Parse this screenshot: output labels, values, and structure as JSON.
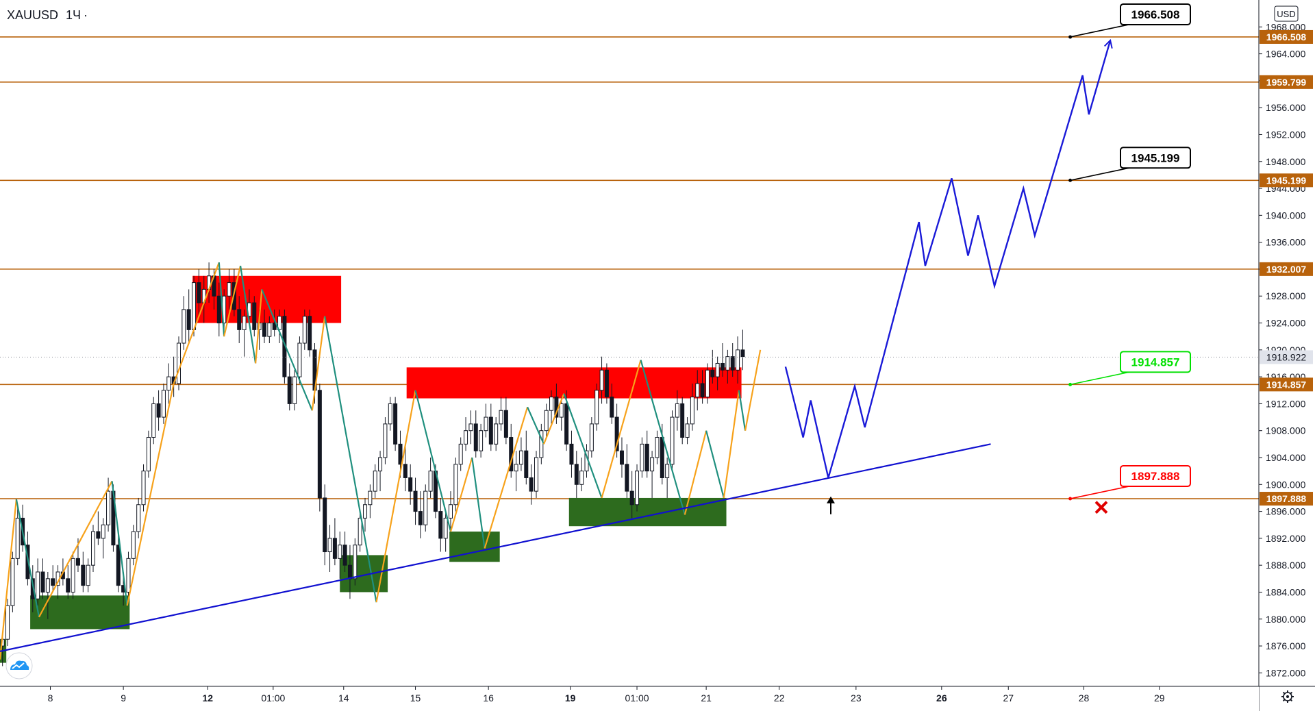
{
  "symbol": "XAUUSD",
  "interval": "1Ч",
  "currency": "USD",
  "colors": {
    "level": "#b8620b",
    "bull": "#131722",
    "bear": "#131722",
    "trend": "#1010d0",
    "projection": "#1a1ad8",
    "zigzag_up": "#f7a21b",
    "zigzag_down": "#1f8f7e",
    "supply": "#ff0000",
    "demand": "#2d6b1e",
    "last_price": "#e0e3eb",
    "callout_red": "#ff0000",
    "callout_green": "#00e000",
    "callout_black": "#000000"
  },
  "icons": {
    "settings": "gear-icon",
    "logo": "tradingview-cloud-icon",
    "target": "cross-icon",
    "entry": "up-arrow-icon"
  },
  "chart_data": {
    "type": "candlestick",
    "ylim": [
      1870,
      1972
    ],
    "y_ticks": [
      1872,
      1876,
      1880,
      1884,
      1888,
      1892,
      1896,
      1900,
      1904,
      1908,
      1912,
      1916,
      1920,
      1924,
      1928,
      1932,
      1936,
      1940,
      1944,
      1948,
      1952,
      1956,
      1960,
      1964,
      1968
    ],
    "y_tick_labels": [
      "1872.000",
      "1876.000",
      "1880.000",
      "1884.000",
      "1888.000",
      "1892.000",
      "1896.000",
      "1900.000",
      "1904.000",
      "1908.000",
      "1912.000",
      "1916.000",
      "1920.000",
      "1924.000",
      "1928.000",
      "1932.000",
      "1936.000",
      "1940.000",
      "1944.000",
      "1948.000",
      "1952.000",
      "1956.000",
      "1960.000",
      "1964.000",
      "1968.000"
    ],
    "x_ticks": [
      {
        "label": "8",
        "x": 0.04
      },
      {
        "label": "9",
        "x": 0.098
      },
      {
        "label": "12",
        "x": 0.165
      },
      {
        "label": "01:00",
        "x": 0.217
      },
      {
        "label": "14",
        "x": 0.273
      },
      {
        "label": "15",
        "x": 0.33
      },
      {
        "label": "16",
        "x": 0.388
      },
      {
        "label": "19",
        "x": 0.453
      },
      {
        "label": "01:00",
        "x": 0.506
      },
      {
        "label": "21",
        "x": 0.561
      },
      {
        "label": "22",
        "x": 0.619
      },
      {
        "label": "23",
        "x": 0.68
      },
      {
        "label": "26",
        "x": 0.748
      },
      {
        "label": "27",
        "x": 0.801
      },
      {
        "label": "28",
        "x": 0.861
      },
      {
        "label": "29",
        "x": 0.921
      }
    ],
    "last_price": {
      "value": 1918.922,
      "label": "1918.922"
    },
    "levels": [
      {
        "value": 1966.508,
        "label": "1966.508"
      },
      {
        "value": 1959.799,
        "label": "1959.799"
      },
      {
        "value": 1945.199,
        "label": "1945.199"
      },
      {
        "value": 1932.007,
        "label": "1932.007"
      },
      {
        "value": 1914.857,
        "label": "1914.857"
      },
      {
        "value": 1897.888,
        "label": "1897.888"
      }
    ],
    "callouts": [
      {
        "label": "1966.508",
        "value": 1966.508,
        "x": 0.848,
        "color": "black"
      },
      {
        "label": "1945.199",
        "value": 1945.199,
        "x": 0.848,
        "color": "black"
      },
      {
        "label": "1914.857",
        "value": 1914.857,
        "x": 0.848,
        "color": "green"
      },
      {
        "label": "1897.888",
        "value": 1897.888,
        "x": 0.848,
        "color": "red"
      }
    ],
    "supply_zones": [
      {
        "x0": 0.153,
        "x1": 0.271,
        "y0": 1931.0,
        "y1": 1924.0
      },
      {
        "x0": 0.323,
        "x1": 0.589,
        "y0": 1917.4,
        "y1": 1912.8
      }
    ],
    "demand_zones": [
      {
        "x0": 0.0,
        "x1": 0.005,
        "y0": 1877.0,
        "y1": 1873.5
      },
      {
        "x0": 0.024,
        "x1": 0.103,
        "y0": 1883.5,
        "y1": 1878.5
      },
      {
        "x0": 0.27,
        "x1": 0.308,
        "y0": 1889.5,
        "y1": 1884.0
      },
      {
        "x0": 0.357,
        "x1": 0.397,
        "y0": 1893.0,
        "y1": 1888.5
      },
      {
        "x0": 0.452,
        "x1": 0.577,
        "y0": 1898.0,
        "y1": 1893.8
      }
    ],
    "trendline": {
      "x0": 0.0,
      "y0": 1875.2,
      "x1": 0.787,
      "y1": 1906.0
    },
    "projection_path": [
      [
        0.624,
        1917.5
      ],
      [
        0.638,
        1907.0
      ],
      [
        0.644,
        1912.5
      ],
      [
        0.658,
        1901.0
      ],
      [
        0.679,
        1914.6
      ],
      [
        0.687,
        1908.5
      ],
      [
        0.73,
        1939.0
      ],
      [
        0.735,
        1932.5
      ],
      [
        0.756,
        1945.5
      ],
      [
        0.769,
        1934.0
      ],
      [
        0.777,
        1940.0
      ],
      [
        0.79,
        1929.5
      ],
      [
        0.813,
        1944.0
      ],
      [
        0.822,
        1937.0
      ],
      [
        0.86,
        1960.8
      ],
      [
        0.865,
        1955.0
      ],
      [
        0.882,
        1966.0
      ]
    ],
    "zigzag": [
      [
        0.0,
        1874.0
      ],
      [
        0.013,
        1897.8
      ],
      [
        0.031,
        1880.3
      ],
      [
        0.089,
        1900.5
      ],
      [
        0.101,
        1882.0
      ],
      [
        0.138,
        1915.0
      ],
      [
        0.174,
        1933.0
      ],
      [
        0.178,
        1922.0
      ],
      [
        0.191,
        1932.5
      ],
      [
        0.203,
        1918.0
      ],
      [
        0.208,
        1929.0
      ],
      [
        0.248,
        1911.0
      ],
      [
        0.258,
        1925.0
      ],
      [
        0.299,
        1882.5
      ],
      [
        0.33,
        1914.0
      ],
      [
        0.358,
        1893.0
      ],
      [
        0.375,
        1904.0
      ],
      [
        0.385,
        1890.5
      ],
      [
        0.419,
        1911.5
      ],
      [
        0.432,
        1906.0
      ],
      [
        0.448,
        1913.5
      ],
      [
        0.478,
        1898.0
      ],
      [
        0.509,
        1918.5
      ],
      [
        0.544,
        1895.5
      ],
      [
        0.561,
        1908.0
      ],
      [
        0.575,
        1898.0
      ],
      [
        0.587,
        1914.0
      ],
      [
        0.592,
        1908.0
      ],
      [
        0.604,
        1920.0
      ]
    ],
    "candles": [
      [
        0.002,
        1876,
        1878,
        1873,
        1877
      ],
      [
        0.006,
        1877,
        1883,
        1876,
        1882
      ],
      [
        0.01,
        1882,
        1890,
        1881,
        1889
      ],
      [
        0.014,
        1889,
        1897,
        1888,
        1895
      ],
      [
        0.018,
        1895,
        1897,
        1890,
        1891
      ],
      [
        0.022,
        1891,
        1893,
        1885,
        1886
      ],
      [
        0.026,
        1886,
        1888,
        1881,
        1883
      ],
      [
        0.03,
        1883,
        1889,
        1882,
        1887
      ],
      [
        0.034,
        1887,
        1889,
        1883,
        1884
      ],
      [
        0.038,
        1884,
        1887,
        1880,
        1886
      ],
      [
        0.042,
        1886,
        1888,
        1884,
        1885
      ],
      [
        0.046,
        1885,
        1888,
        1883,
        1887
      ],
      [
        0.05,
        1887,
        1889,
        1885,
        1886
      ],
      [
        0.054,
        1886,
        1888,
        1883,
        1884
      ],
      [
        0.058,
        1884,
        1890,
        1883,
        1889
      ],
      [
        0.062,
        1889,
        1892,
        1887,
        1888
      ],
      [
        0.066,
        1888,
        1890,
        1884,
        1885
      ],
      [
        0.07,
        1885,
        1889,
        1884,
        1888
      ],
      [
        0.074,
        1888,
        1894,
        1887,
        1893
      ],
      [
        0.078,
        1893,
        1896,
        1891,
        1892
      ],
      [
        0.082,
        1892,
        1895,
        1889,
        1894
      ],
      [
        0.086,
        1894,
        1901,
        1893,
        1899
      ],
      [
        0.09,
        1899,
        1900,
        1890,
        1891
      ],
      [
        0.094,
        1891,
        1893,
        1884,
        1885
      ],
      [
        0.098,
        1885,
        1887,
        1882,
        1884
      ],
      [
        0.102,
        1884,
        1890,
        1883,
        1889
      ],
      [
        0.106,
        1889,
        1894,
        1888,
        1893
      ],
      [
        0.11,
        1893,
        1898,
        1892,
        1897
      ],
      [
        0.114,
        1897,
        1903,
        1896,
        1902
      ],
      [
        0.118,
        1902,
        1908,
        1901,
        1907
      ],
      [
        0.122,
        1907,
        1913,
        1906,
        1912
      ],
      [
        0.126,
        1912,
        1914,
        1908,
        1910
      ],
      [
        0.13,
        1910,
        1915,
        1909,
        1914
      ],
      [
        0.134,
        1914,
        1918,
        1912,
        1916
      ],
      [
        0.138,
        1916,
        1919,
        1913,
        1915
      ],
      [
        0.142,
        1915,
        1922,
        1914,
        1921
      ],
      [
        0.146,
        1921,
        1928,
        1920,
        1926
      ],
      [
        0.15,
        1926,
        1929,
        1921,
        1923
      ],
      [
        0.154,
        1923,
        1931,
        1922,
        1930
      ],
      [
        0.158,
        1930,
        1932,
        1925,
        1927
      ],
      [
        0.162,
        1927,
        1931,
        1924,
        1929
      ],
      [
        0.166,
        1929,
        1933,
        1927,
        1931
      ],
      [
        0.17,
        1931,
        1932,
        1926,
        1928
      ],
      [
        0.174,
        1928,
        1930,
        1922,
        1924
      ],
      [
        0.178,
        1924,
        1929,
        1923,
        1928
      ],
      [
        0.182,
        1928,
        1932,
        1926,
        1930
      ],
      [
        0.186,
        1930,
        1932,
        1925,
        1926
      ],
      [
        0.19,
        1926,
        1928,
        1921,
        1923
      ],
      [
        0.194,
        1923,
        1926,
        1919,
        1925
      ],
      [
        0.198,
        1925,
        1929,
        1924,
        1927
      ],
      [
        0.202,
        1927,
        1928,
        1922,
        1923
      ],
      [
        0.206,
        1923,
        1926,
        1920,
        1924
      ],
      [
        0.21,
        1924,
        1926,
        1921,
        1922
      ],
      [
        0.214,
        1922,
        1925,
        1921,
        1924
      ],
      [
        0.218,
        1924,
        1926,
        1922,
        1923
      ],
      [
        0.222,
        1923,
        1926,
        1921,
        1925
      ],
      [
        0.226,
        1925,
        1926,
        1915,
        1916
      ],
      [
        0.23,
        1916,
        1918,
        1911,
        1912
      ],
      [
        0.234,
        1912,
        1917,
        1911,
        1916
      ],
      [
        0.238,
        1916,
        1922,
        1915,
        1921
      ],
      [
        0.242,
        1921,
        1926,
        1920,
        1925
      ],
      [
        0.246,
        1925,
        1926,
        1919,
        1920
      ],
      [
        0.25,
        1920,
        1921,
        1912,
        1914
      ],
      [
        0.254,
        1914,
        1915,
        1896,
        1898
      ],
      [
        0.258,
        1898,
        1900,
        1888,
        1890
      ],
      [
        0.262,
        1890,
        1894,
        1887,
        1892
      ],
      [
        0.266,
        1892,
        1895,
        1888,
        1889
      ],
      [
        0.27,
        1889,
        1893,
        1886,
        1891
      ],
      [
        0.274,
        1891,
        1893,
        1887,
        1888
      ],
      [
        0.278,
        1888,
        1891,
        1883,
        1886
      ],
      [
        0.282,
        1886,
        1892,
        1885,
        1891
      ],
      [
        0.286,
        1891,
        1896,
        1890,
        1895
      ],
      [
        0.29,
        1895,
        1898,
        1893,
        1897
      ],
      [
        0.294,
        1897,
        1900,
        1895,
        1899
      ],
      [
        0.298,
        1899,
        1903,
        1898,
        1902
      ],
      [
        0.302,
        1902,
        1905,
        1899,
        1904
      ],
      [
        0.306,
        1904,
        1910,
        1903,
        1909
      ],
      [
        0.31,
        1909,
        1913,
        1908,
        1912
      ],
      [
        0.314,
        1912,
        1913,
        1905,
        1906
      ],
      [
        0.318,
        1906,
        1908,
        1901,
        1903
      ],
      [
        0.322,
        1903,
        1906,
        1899,
        1901
      ],
      [
        0.326,
        1901,
        1903,
        1897,
        1899
      ],
      [
        0.33,
        1899,
        1901,
        1894,
        1896
      ],
      [
        0.334,
        1896,
        1899,
        1892,
        1894
      ],
      [
        0.338,
        1894,
        1900,
        1893,
        1899
      ],
      [
        0.342,
        1899,
        1904,
        1898,
        1902
      ],
      [
        0.346,
        1902,
        1903,
        1895,
        1896
      ],
      [
        0.35,
        1896,
        1898,
        1890,
        1892
      ],
      [
        0.354,
        1892,
        1896,
        1890,
        1895
      ],
      [
        0.358,
        1895,
        1899,
        1893,
        1897
      ],
      [
        0.362,
        1897,
        1904,
        1896,
        1903
      ],
      [
        0.366,
        1903,
        1907,
        1902,
        1906
      ],
      [
        0.37,
        1906,
        1910,
        1905,
        1908
      ],
      [
        0.374,
        1908,
        1911,
        1906,
        1909
      ],
      [
        0.378,
        1909,
        1911,
        1904,
        1905
      ],
      [
        0.382,
        1905,
        1909,
        1904,
        1908
      ],
      [
        0.386,
        1908,
        1912,
        1907,
        1910
      ],
      [
        0.39,
        1910,
        1912,
        1905,
        1906
      ],
      [
        0.394,
        1906,
        1910,
        1905,
        1909
      ],
      [
        0.398,
        1909,
        1913,
        1908,
        1911
      ],
      [
        0.402,
        1911,
        1913,
        1906,
        1907
      ],
      [
        0.406,
        1907,
        1909,
        1901,
        1902
      ],
      [
        0.41,
        1902,
        1905,
        1899,
        1903
      ],
      [
        0.414,
        1903,
        1907,
        1902,
        1905
      ],
      [
        0.418,
        1905,
        1908,
        1900,
        1901
      ],
      [
        0.422,
        1901,
        1903,
        1897,
        1899
      ],
      [
        0.426,
        1899,
        1905,
        1898,
        1904
      ],
      [
        0.43,
        1904,
        1909,
        1903,
        1908
      ],
      [
        0.434,
        1908,
        1912,
        1907,
        1911
      ],
      [
        0.438,
        1911,
        1914,
        1909,
        1913
      ],
      [
        0.442,
        1913,
        1915,
        1909,
        1910
      ],
      [
        0.446,
        1910,
        1913,
        1908,
        1912
      ],
      [
        0.45,
        1912,
        1914,
        1905,
        1906
      ],
      [
        0.454,
        1906,
        1908,
        1901,
        1903
      ],
      [
        0.458,
        1903,
        1905,
        1898,
        1900
      ],
      [
        0.462,
        1900,
        1904,
        1899,
        1902
      ],
      [
        0.466,
        1902,
        1906,
        1901,
        1905
      ],
      [
        0.47,
        1905,
        1910,
        1904,
        1909
      ],
      [
        0.474,
        1909,
        1915,
        1908,
        1914
      ],
      [
        0.478,
        1914,
        1919,
        1912,
        1917
      ],
      [
        0.482,
        1917,
        1918,
        1912,
        1913
      ],
      [
        0.486,
        1913,
        1915,
        1909,
        1910
      ],
      [
        0.49,
        1910,
        1912,
        1904,
        1905
      ],
      [
        0.494,
        1905,
        1907,
        1901,
        1903
      ],
      [
        0.498,
        1903,
        1906,
        1898,
        1899
      ],
      [
        0.502,
        1899,
        1902,
        1895,
        1897
      ],
      [
        0.506,
        1897,
        1903,
        1896,
        1902
      ],
      [
        0.51,
        1902,
        1907,
        1901,
        1906
      ],
      [
        0.514,
        1906,
        1908,
        1901,
        1902
      ],
      [
        0.518,
        1902,
        1905,
        1898,
        1904
      ],
      [
        0.522,
        1904,
        1908,
        1903,
        1907
      ],
      [
        0.526,
        1907,
        1909,
        1900,
        1901
      ],
      [
        0.53,
        1901,
        1904,
        1898,
        1903
      ],
      [
        0.534,
        1903,
        1911,
        1902,
        1910
      ],
      [
        0.538,
        1910,
        1914,
        1908,
        1912
      ],
      [
        0.542,
        1912,
        1913,
        1906,
        1907
      ],
      [
        0.546,
        1907,
        1910,
        1906,
        1909
      ],
      [
        0.55,
        1909,
        1915,
        1908,
        1913
      ],
      [
        0.554,
        1913,
        1917,
        1911,
        1915
      ],
      [
        0.558,
        1915,
        1917,
        1912,
        1913
      ],
      [
        0.562,
        1913,
        1918,
        1912,
        1917
      ],
      [
        0.566,
        1917,
        1920,
        1915,
        1916
      ],
      [
        0.57,
        1916,
        1919,
        1914,
        1918
      ],
      [
        0.574,
        1918,
        1921,
        1916,
        1917
      ],
      [
        0.578,
        1917,
        1920,
        1915,
        1919
      ],
      [
        0.582,
        1919,
        1921,
        1916,
        1917
      ],
      [
        0.586,
        1917,
        1922,
        1915,
        1920
      ],
      [
        0.59,
        1920,
        1923,
        1917,
        1919
      ]
    ]
  }
}
